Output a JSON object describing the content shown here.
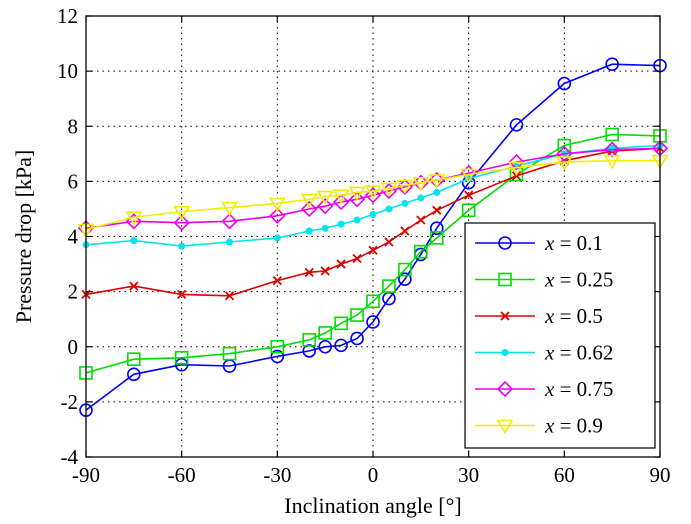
{
  "chart_data": {
    "type": "line",
    "xlabel": "Inclination angle [°]",
    "ylabel": "Pressure drop [kPa]",
    "xlim": [
      -90,
      90
    ],
    "ylim": [
      -4,
      12
    ],
    "xticks": [
      -90,
      -60,
      -30,
      0,
      30,
      60,
      90
    ],
    "yticks": [
      -4,
      -2,
      0,
      2,
      4,
      6,
      8,
      10,
      12
    ],
    "grid": true,
    "legend_position": "bottom-right",
    "series": [
      {
        "name": "x = 0.1",
        "legend_var": "x",
        "legend_value": "= 0.1",
        "color": "#0000ff",
        "marker": "circle",
        "x": [
          -90,
          -75,
          -60,
          -45,
          -30,
          -20,
          -15,
          -10,
          -5,
          0,
          5,
          10,
          15,
          20,
          30,
          45,
          60,
          75,
          90
        ],
        "y": [
          -2.3,
          -1.0,
          -0.65,
          -0.7,
          -0.35,
          -0.15,
          0.0,
          0.05,
          0.3,
          0.9,
          1.75,
          2.45,
          3.35,
          4.3,
          5.95,
          8.05,
          9.55,
          10.25,
          10.2
        ]
      },
      {
        "name": "x = 0.25",
        "legend_var": "x",
        "legend_value": "= 0.25",
        "color": "#00dd00",
        "marker": "square",
        "x": [
          -90,
          -75,
          -60,
          -45,
          -30,
          -20,
          -15,
          -10,
          -5,
          0,
          5,
          10,
          15,
          20,
          30,
          45,
          60,
          75,
          90
        ],
        "y": [
          -0.95,
          -0.45,
          -0.4,
          -0.25,
          0.0,
          0.25,
          0.5,
          0.85,
          1.15,
          1.65,
          2.2,
          2.8,
          3.45,
          3.95,
          4.95,
          6.25,
          7.3,
          7.7,
          7.65
        ]
      },
      {
        "name": "x = 0.5",
        "legend_var": "x",
        "legend_value": "= 0.5",
        "color": "#dd0000",
        "marker": "cross",
        "x": [
          -90,
          -75,
          -60,
          -45,
          -30,
          -20,
          -15,
          -10,
          -5,
          0,
          5,
          10,
          15,
          20,
          30,
          45,
          60,
          75,
          90
        ],
        "y": [
          1.9,
          2.2,
          1.9,
          1.85,
          2.4,
          2.7,
          2.75,
          3.0,
          3.2,
          3.5,
          3.8,
          4.2,
          4.6,
          4.95,
          5.5,
          6.2,
          6.75,
          7.1,
          7.2
        ]
      },
      {
        "name": "x = 0.62",
        "legend_var": "x",
        "legend_value": "= 0.62",
        "color": "#00e5ee",
        "marker": "dot",
        "x": [
          -90,
          -75,
          -60,
          -45,
          -30,
          -20,
          -15,
          -10,
          -5,
          0,
          5,
          10,
          15,
          20,
          30,
          45,
          60,
          75,
          90
        ],
        "y": [
          3.7,
          3.85,
          3.65,
          3.8,
          3.95,
          4.2,
          4.3,
          4.45,
          4.6,
          4.8,
          5.0,
          5.2,
          5.4,
          5.6,
          6.1,
          6.55,
          7.0,
          7.2,
          7.3
        ]
      },
      {
        "name": "x = 0.75",
        "legend_var": "x",
        "legend_value": "= 0.75",
        "color": "#ee00ee",
        "marker": "diamond",
        "x": [
          -90,
          -75,
          -60,
          -45,
          -30,
          -20,
          -15,
          -10,
          -5,
          0,
          5,
          10,
          15,
          20,
          30,
          45,
          60,
          75,
          90
        ],
        "y": [
          4.3,
          4.55,
          4.5,
          4.55,
          4.75,
          5.0,
          5.1,
          5.25,
          5.35,
          5.5,
          5.65,
          5.8,
          5.95,
          6.05,
          6.3,
          6.7,
          7.0,
          7.15,
          7.2
        ]
      },
      {
        "name": "x = 0.9",
        "legend_var": "x",
        "legend_value": "= 0.9",
        "color": "#eeee00",
        "marker": "triangle-down",
        "x": [
          -90,
          -75,
          -60,
          -45,
          -30,
          -20,
          -15,
          -10,
          -5,
          0,
          5,
          10,
          15,
          20,
          30,
          45,
          60,
          75,
          90
        ],
        "y": [
          4.25,
          4.7,
          4.9,
          5.05,
          5.2,
          5.35,
          5.45,
          5.5,
          5.6,
          5.65,
          5.75,
          5.85,
          5.95,
          6.05,
          6.25,
          6.5,
          6.7,
          6.75,
          6.75
        ]
      }
    ]
  }
}
